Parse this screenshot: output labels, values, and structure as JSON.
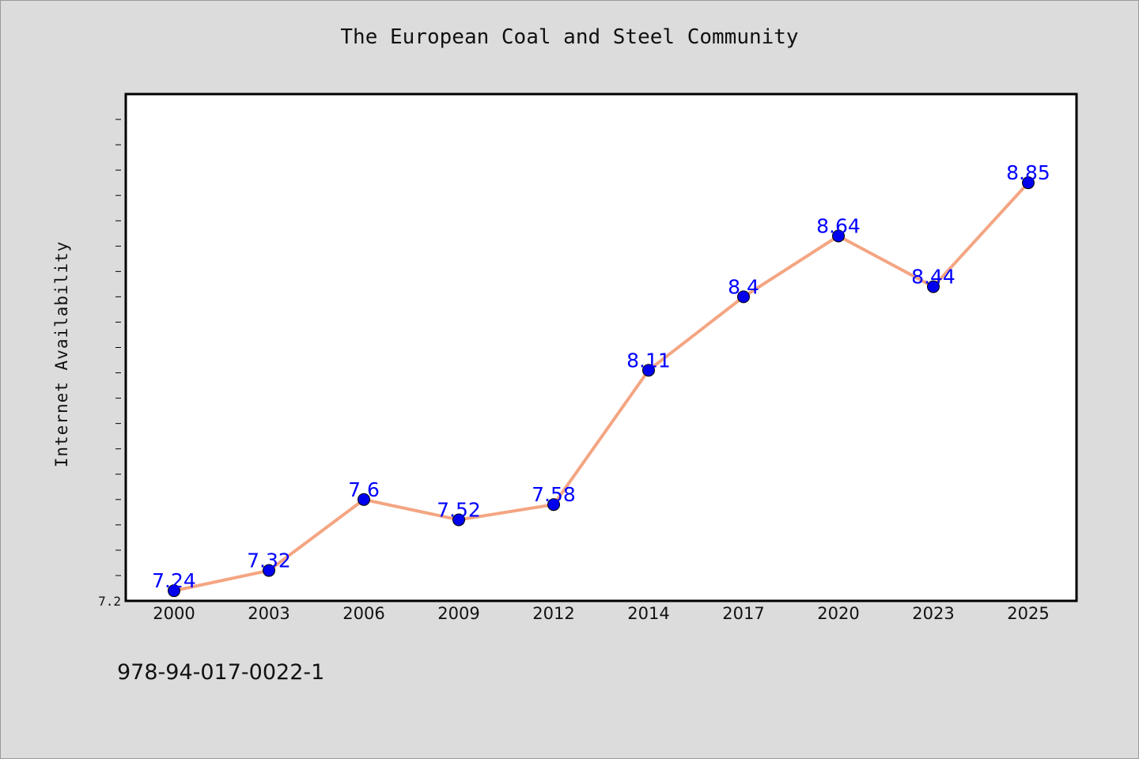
{
  "chart_data": {
    "type": "line",
    "title": "The European Coal and Steel Community",
    "xlabel": "",
    "ylabel": "Internet Availability",
    "categories": [
      "2000",
      "2003",
      "2006",
      "2009",
      "2012",
      "2014",
      "2017",
      "2020",
      "2023",
      "2025"
    ],
    "series": [
      {
        "values": [
          7.24,
          7.32,
          7.6,
          7.52,
          7.58,
          8.11,
          8.4,
          8.64,
          8.44,
          8.85
        ]
      }
    ],
    "data_labels": [
      "7.24",
      "7.32",
      "7.6",
      "7.52",
      "7.58",
      "8.11",
      "8.4",
      "8.64",
      "8.44",
      "8.85"
    ],
    "ylim": [
      7.2,
      9.2
    ],
    "y_tick_labels": [
      "7.2"
    ],
    "grid": false,
    "colors": {
      "line": "#f4a582",
      "marker": "#0000ee",
      "data_label": "#0000ff",
      "plot_background": "#ffffff",
      "page_background": "#dcdcdc"
    }
  },
  "footnote": "978-94-017-0022-1"
}
